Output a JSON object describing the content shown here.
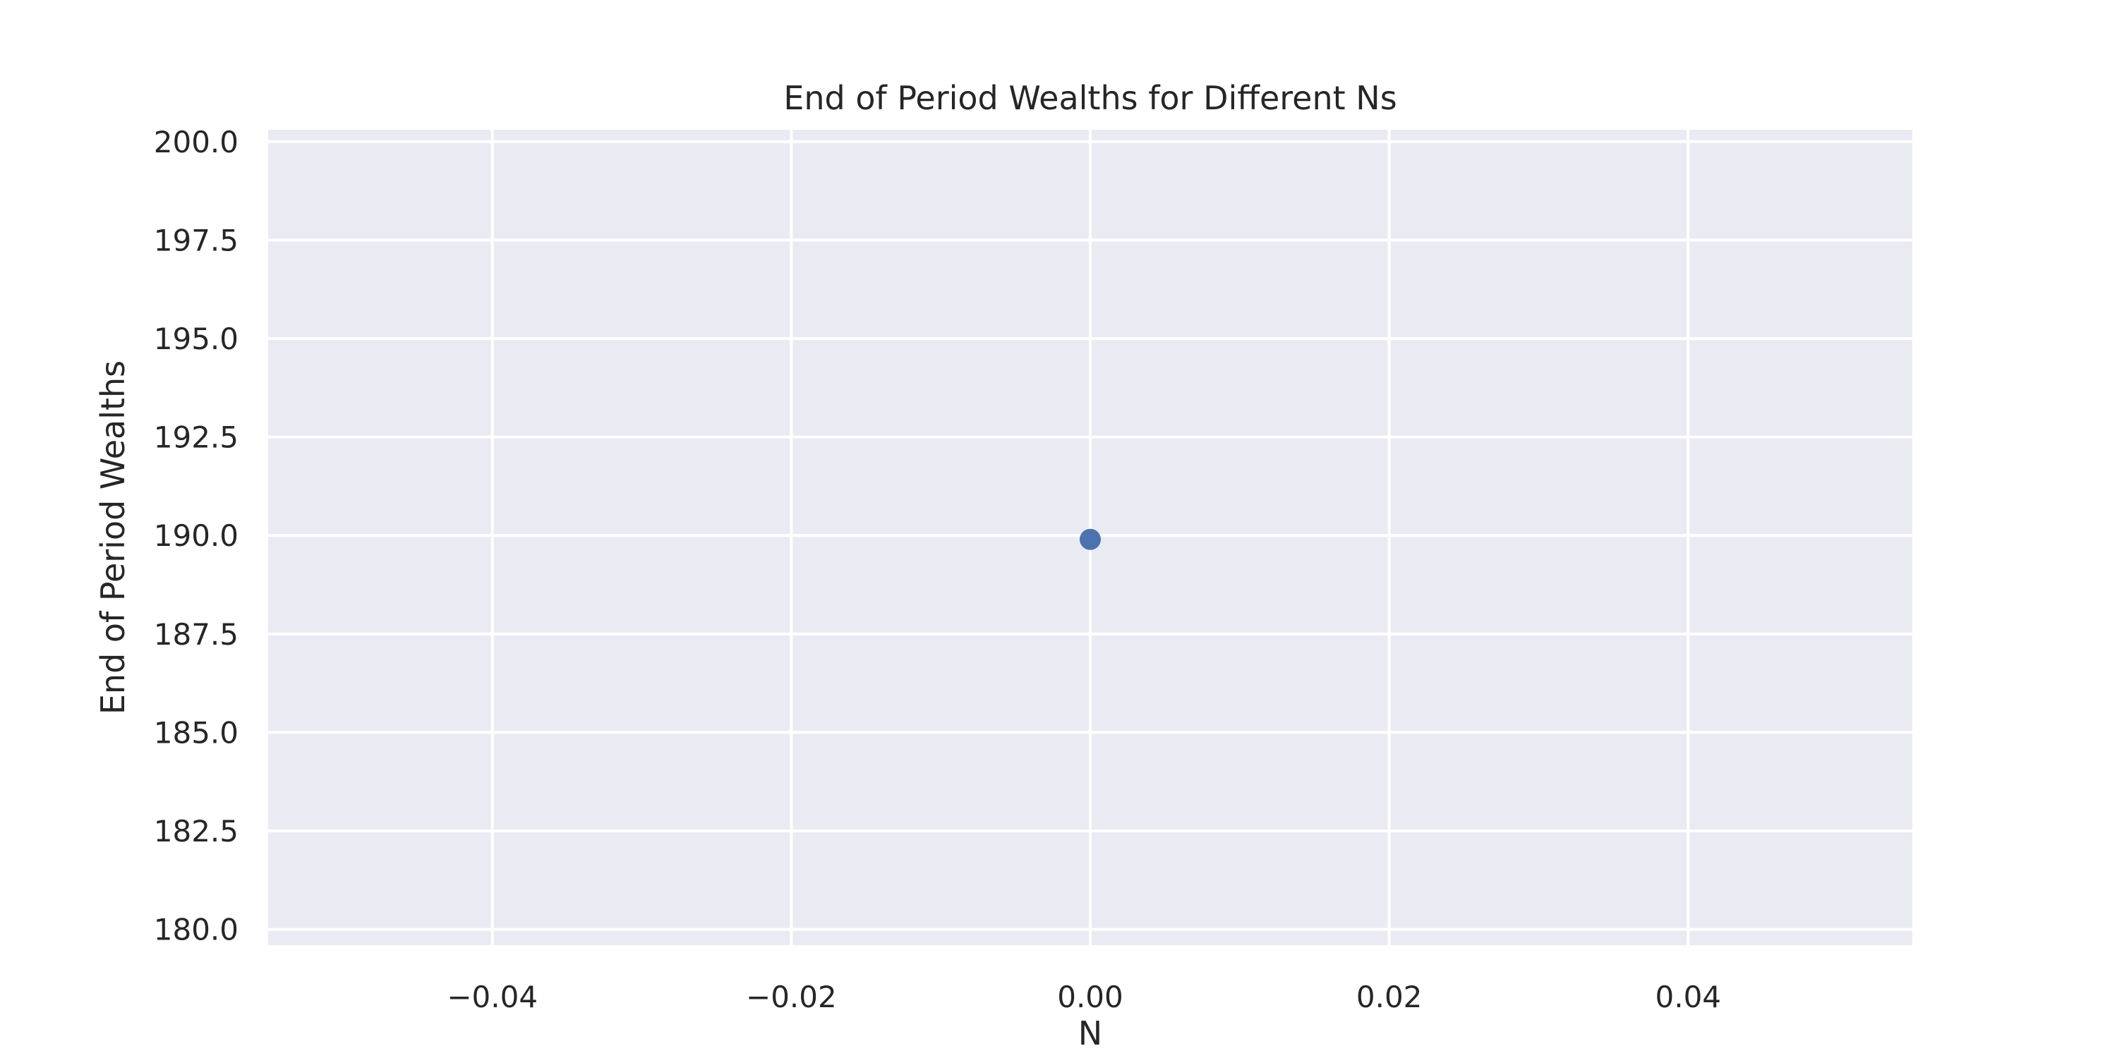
{
  "chart_data": {
    "type": "scatter",
    "title": "End of Period Wealths for Different Ns",
    "xlabel": "N",
    "ylabel": "End of Period Wealths",
    "xlim": [
      -0.055,
      0.055
    ],
    "ylim": [
      179.6,
      200.3
    ],
    "xticks": [
      -0.04,
      -0.02,
      0.0,
      0.02,
      0.04
    ],
    "xtick_labels": [
      "−0.04",
      "−0.02",
      "0.00",
      "0.02",
      "0.04"
    ],
    "yticks": [
      180.0,
      182.5,
      185.0,
      187.5,
      190.0,
      192.5,
      195.0,
      197.5,
      200.0
    ],
    "ytick_labels": [
      "180.0",
      "182.5",
      "185.0",
      "187.5",
      "190.0",
      "192.5",
      "195.0",
      "197.5",
      "200.0"
    ],
    "series": [
      {
        "x": [
          0.0
        ],
        "y": [
          189.9
        ]
      }
    ],
    "grid": true,
    "legend": "none"
  },
  "colors": {
    "plot_background": "#eaeaf2",
    "grid": "#ffffff",
    "marker": "#4c72b0",
    "text": "#262626"
  }
}
